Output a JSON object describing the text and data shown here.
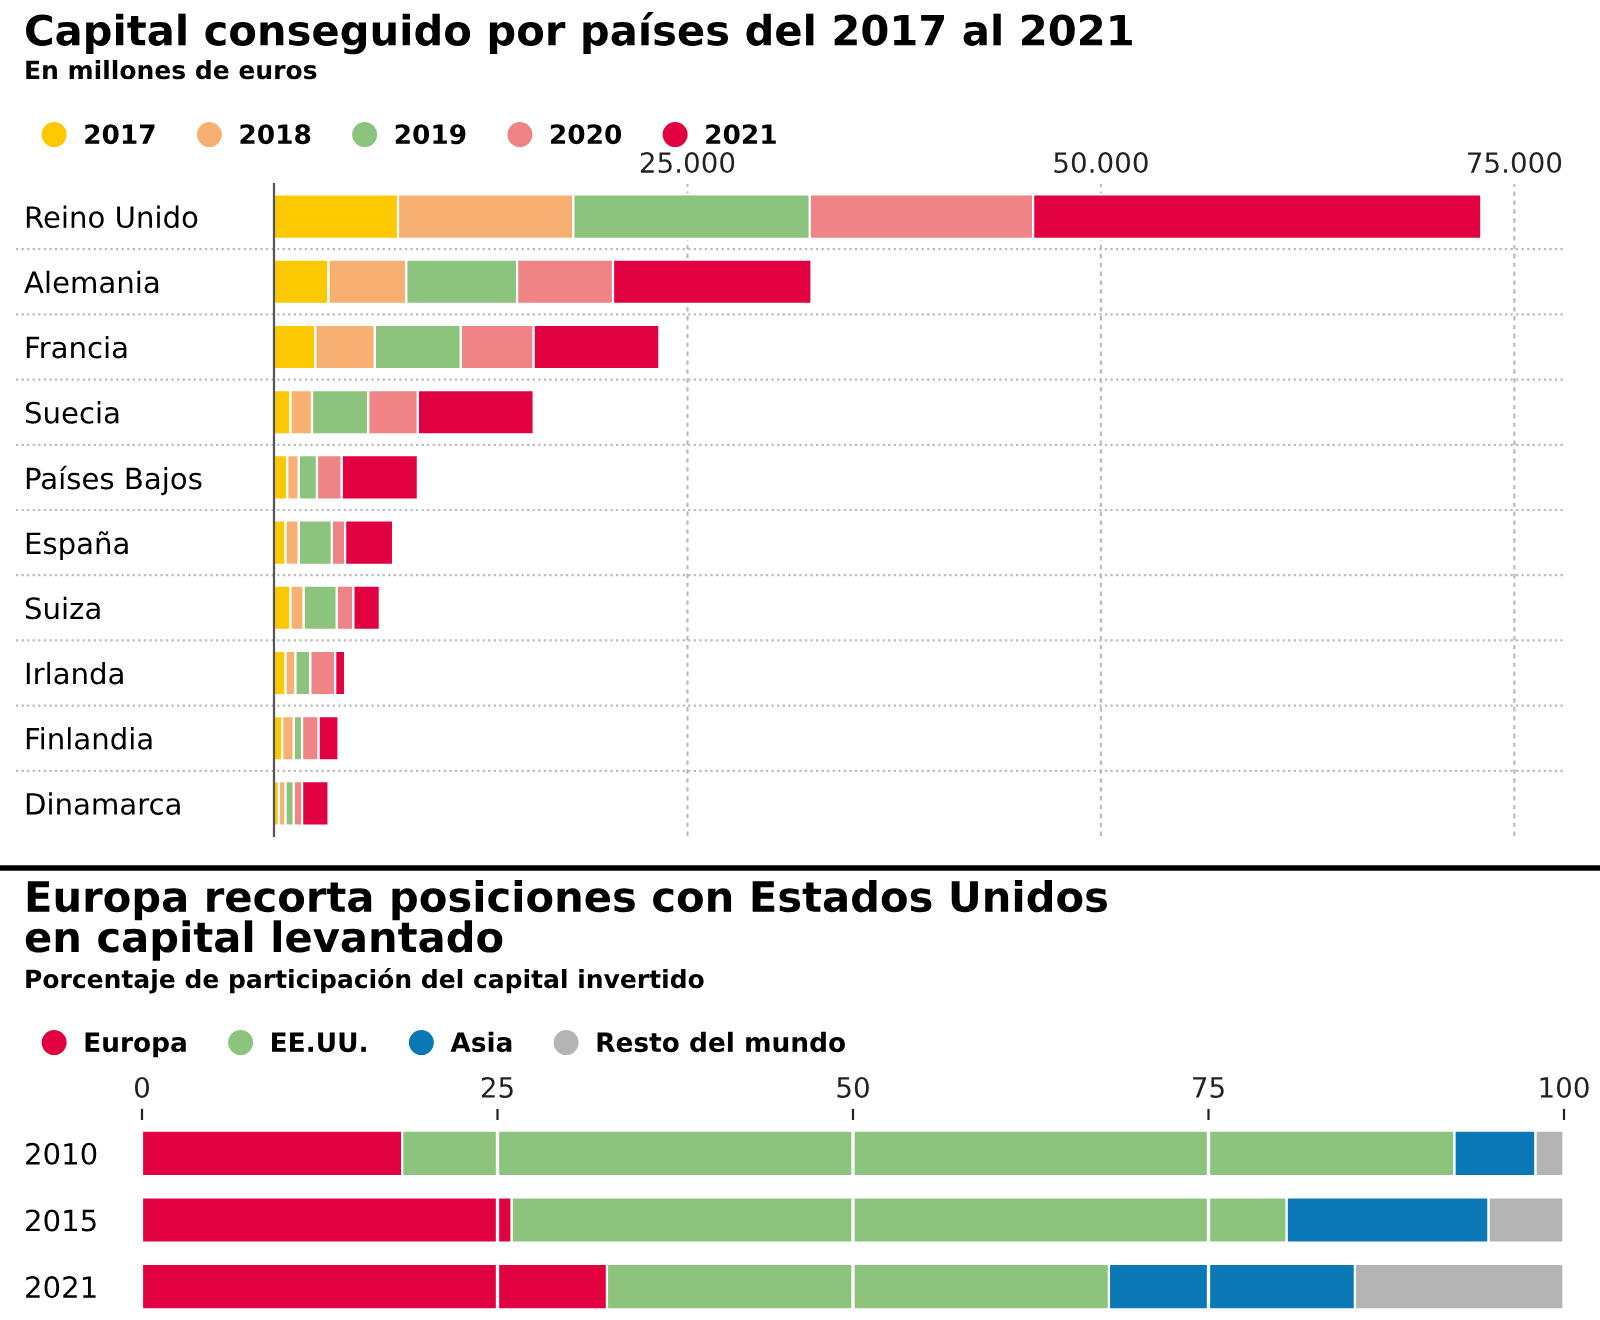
{
  "chart_data": [
    {
      "type": "bar",
      "orientation": "horizontal",
      "stacked": true,
      "title": "Capital conseguido por países del 2017 al 2021",
      "subtitle": "En millones de euros",
      "categories": [
        "Reino Unido",
        "Alemania",
        "Francia",
        "Suecia",
        "Países Bajos",
        "España",
        "Suiza",
        "Irlanda",
        "Finlandia",
        "Dinamarca"
      ],
      "series": [
        {
          "name": "2017",
          "color": "#fcc800",
          "values": [
            7500,
            3300,
            2500,
            1000,
            800,
            700,
            1000,
            700,
            500,
            300
          ]
        },
        {
          "name": "2018",
          "color": "#f5b072",
          "values": [
            10600,
            4700,
            3600,
            1300,
            700,
            800,
            800,
            600,
            700,
            400
          ]
        },
        {
          "name": "2019",
          "color": "#8cc47e",
          "values": [
            14300,
            6700,
            5200,
            3400,
            1100,
            2000,
            2000,
            900,
            500,
            500
          ]
        },
        {
          "name": "2020",
          "color": "#ef8385",
          "values": [
            13500,
            5800,
            4400,
            3000,
            1500,
            800,
            1000,
            1500,
            1000,
            500
          ]
        },
        {
          "name": "2021",
          "color": "#e10040",
          "values": [
            27100,
            12000,
            7600,
            7000,
            4600,
            2900,
            1600,
            600,
            1200,
            1600
          ]
        }
      ],
      "xlim": [
        0,
        78000
      ],
      "xticks": [
        {
          "value": 0,
          "label": null
        },
        {
          "value": 25000,
          "label": "25.000"
        },
        {
          "value": 50000,
          "label": "50.000"
        },
        {
          "value": 75000,
          "label": "75.000"
        }
      ],
      "grid": "x",
      "legend": "top left"
    },
    {
      "type": "bar",
      "orientation": "horizontal",
      "stacked": true,
      "title": "Europa recorta posiciones con Estados Unidos en capital levantado",
      "subtitle": "Porcentaje de participación del capital invertido",
      "categories": [
        "2010",
        "2015",
        "2021"
      ],
      "series": [
        {
          "name": "Europa",
          "color": "#e10040",
          "values": [
            18.3,
            26.0,
            32.7
          ]
        },
        {
          "name": "EE.UU.",
          "color": "#8cc47e",
          "values": [
            74.0,
            54.5,
            35.3
          ]
        },
        {
          "name": "Asia",
          "color": "#0a78b4",
          "values": [
            5.7,
            14.2,
            17.3
          ]
        },
        {
          "name": "Resto del mundo",
          "color": "#b4b4b4",
          "values": [
            2.0,
            5.3,
            14.7
          ]
        }
      ],
      "xlim": [
        0,
        100
      ],
      "xticks": [
        0,
        25,
        50,
        75,
        100
      ],
      "grid": "x",
      "legend": "top left"
    }
  ]
}
